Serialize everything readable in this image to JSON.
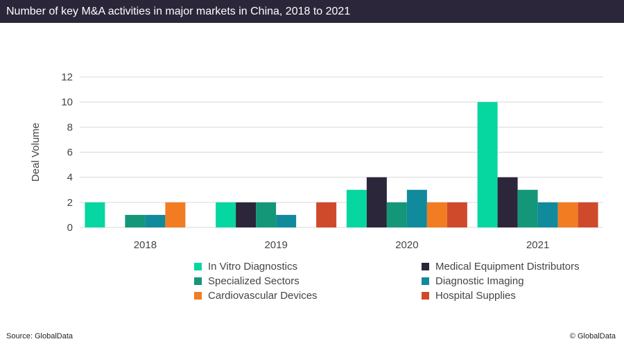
{
  "title": "Number of key M&A activities in major markets in China, 2018 to 2021",
  "source": "Source: GlobalData",
  "copyright": "© GlobalData",
  "chart_data": {
    "type": "bar",
    "title": "Number of key M&A activities in major markets in China, 2018 to 2021",
    "xlabel": "",
    "ylabel": "Deal Volume",
    "ylim": [
      0,
      12
    ],
    "yticks": [
      0,
      2,
      4,
      6,
      8,
      10,
      12
    ],
    "grid": true,
    "legend": "bottom",
    "categories": [
      "2018",
      "2019",
      "2020",
      "2021"
    ],
    "series": [
      {
        "name": "In Vitro Diagnostics",
        "color": "#06d6a0",
        "values": [
          2,
          2,
          3,
          10
        ]
      },
      {
        "name": "Medical Equipment Distributors",
        "color": "#2b2639",
        "values": [
          0,
          2,
          4,
          4
        ]
      },
      {
        "name": "Specialized Sectors",
        "color": "#149678",
        "values": [
          1,
          2,
          2,
          3
        ]
      },
      {
        "name": "Diagnostic Imaging",
        "color": "#118a9c",
        "values": [
          1,
          1,
          3,
          2
        ]
      },
      {
        "name": "Cardiovascular Devices",
        "color": "#f27c22",
        "values": [
          2,
          0,
          2,
          2
        ]
      },
      {
        "name": "Hospital Supplies",
        "color": "#cf4a2b",
        "values": [
          0,
          2,
          2,
          2
        ]
      }
    ]
  }
}
